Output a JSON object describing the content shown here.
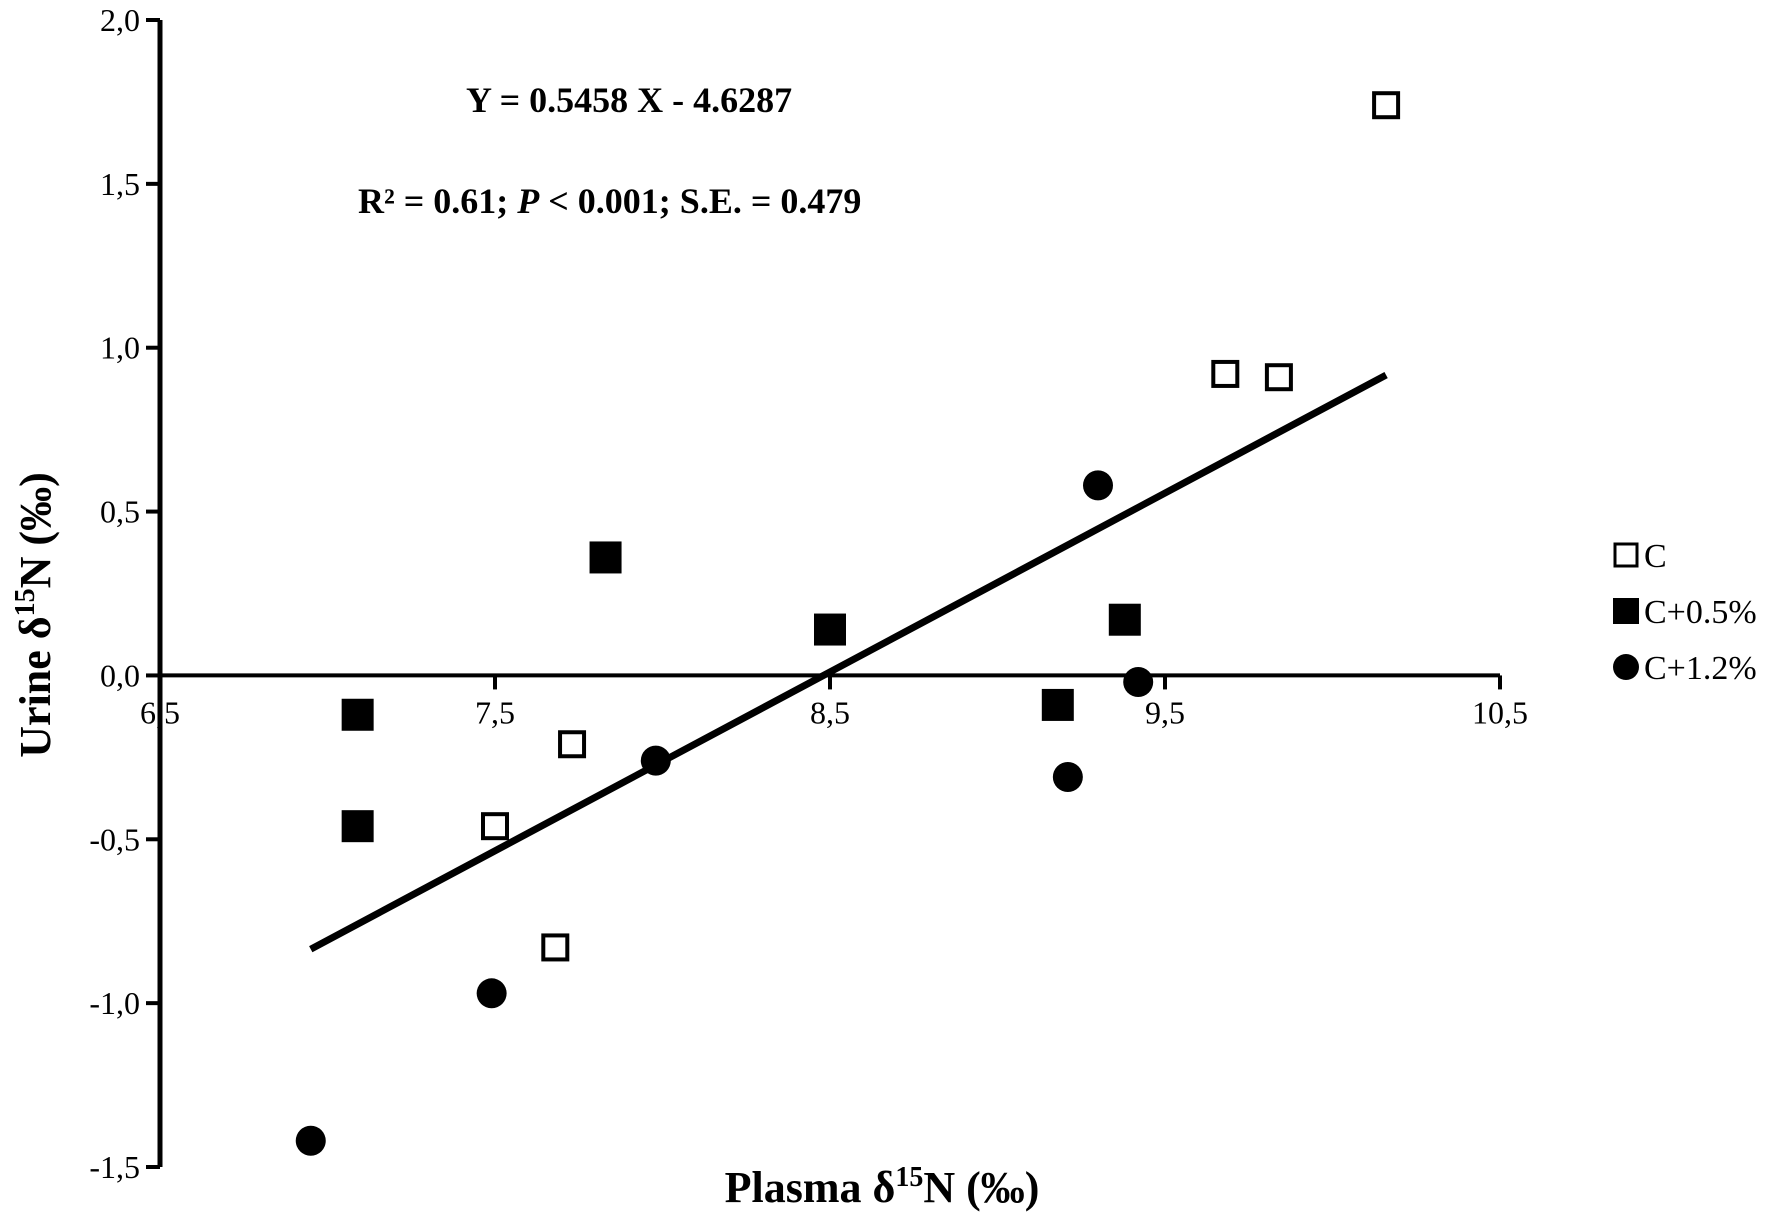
{
  "chart_data": {
    "type": "scatter",
    "title": "",
    "xlabel": {
      "prefix": "Plasma δ",
      "sup": "15",
      "suffix": "N (‰)"
    },
    "ylabel": {
      "prefix": "Urine δ",
      "sup": "15",
      "suffix": "N (‰)"
    },
    "xlim": [
      6.5,
      10.5
    ],
    "ylim": [
      -1.5,
      2.0
    ],
    "x_ticks": [
      6.5,
      7.5,
      8.5,
      9.5,
      10.5
    ],
    "x_tick_labels": [
      "6,5",
      "7,5",
      "8,5",
      "9,5",
      "10,5"
    ],
    "y_ticks": [
      2.0,
      1.5,
      1.0,
      0.5,
      0.0,
      -0.5,
      -1.0,
      -1.5
    ],
    "y_tick_labels": [
      "2,0",
      "1,5",
      "1,0",
      "0,5",
      "0,0",
      "-0,5",
      "-1,0",
      "-1,5"
    ],
    "grid": false,
    "legend_position": "right",
    "annotations": {
      "equation": "Y = 0.5458 X - 4.6287",
      "stats_r2_prefix": "R² = 0.61; ",
      "stats_p_italic": "P",
      "stats_rest": " < 0.001; S.E. = 0.479"
    },
    "series": [
      {
        "name": "C",
        "marker": "open-square",
        "color": "#000000",
        "points": [
          {
            "x": 7.5,
            "y": -0.46
          },
          {
            "x": 7.68,
            "y": -0.83
          },
          {
            "x": 7.73,
            "y": -0.21
          },
          {
            "x": 9.68,
            "y": 0.92
          },
          {
            "x": 9.84,
            "y": 0.91
          },
          {
            "x": 10.16,
            "y": 1.74
          }
        ]
      },
      {
        "name": "C+0.5%",
        "marker": "filled-square",
        "color": "#000000",
        "points": [
          {
            "x": 7.09,
            "y": -0.12
          },
          {
            "x": 7.09,
            "y": -0.46
          },
          {
            "x": 7.83,
            "y": 0.36
          },
          {
            "x": 8.5,
            "y": 0.14
          },
          {
            "x": 9.18,
            "y": -0.09
          },
          {
            "x": 9.38,
            "y": 0.17
          }
        ]
      },
      {
        "name": "C+1.2%",
        "marker": "filled-circle",
        "color": "#000000",
        "points": [
          {
            "x": 6.95,
            "y": -1.42
          },
          {
            "x": 7.49,
            "y": -0.97
          },
          {
            "x": 7.98,
            "y": -0.26
          },
          {
            "x": 9.21,
            "y": -0.31
          },
          {
            "x": 9.3,
            "y": 0.58
          },
          {
            "x": 9.42,
            "y": -0.02
          }
        ]
      }
    ],
    "regression_line": {
      "slope": 0.5458,
      "intercept": -4.6287,
      "x_range": [
        6.95,
        10.16
      ]
    }
  }
}
